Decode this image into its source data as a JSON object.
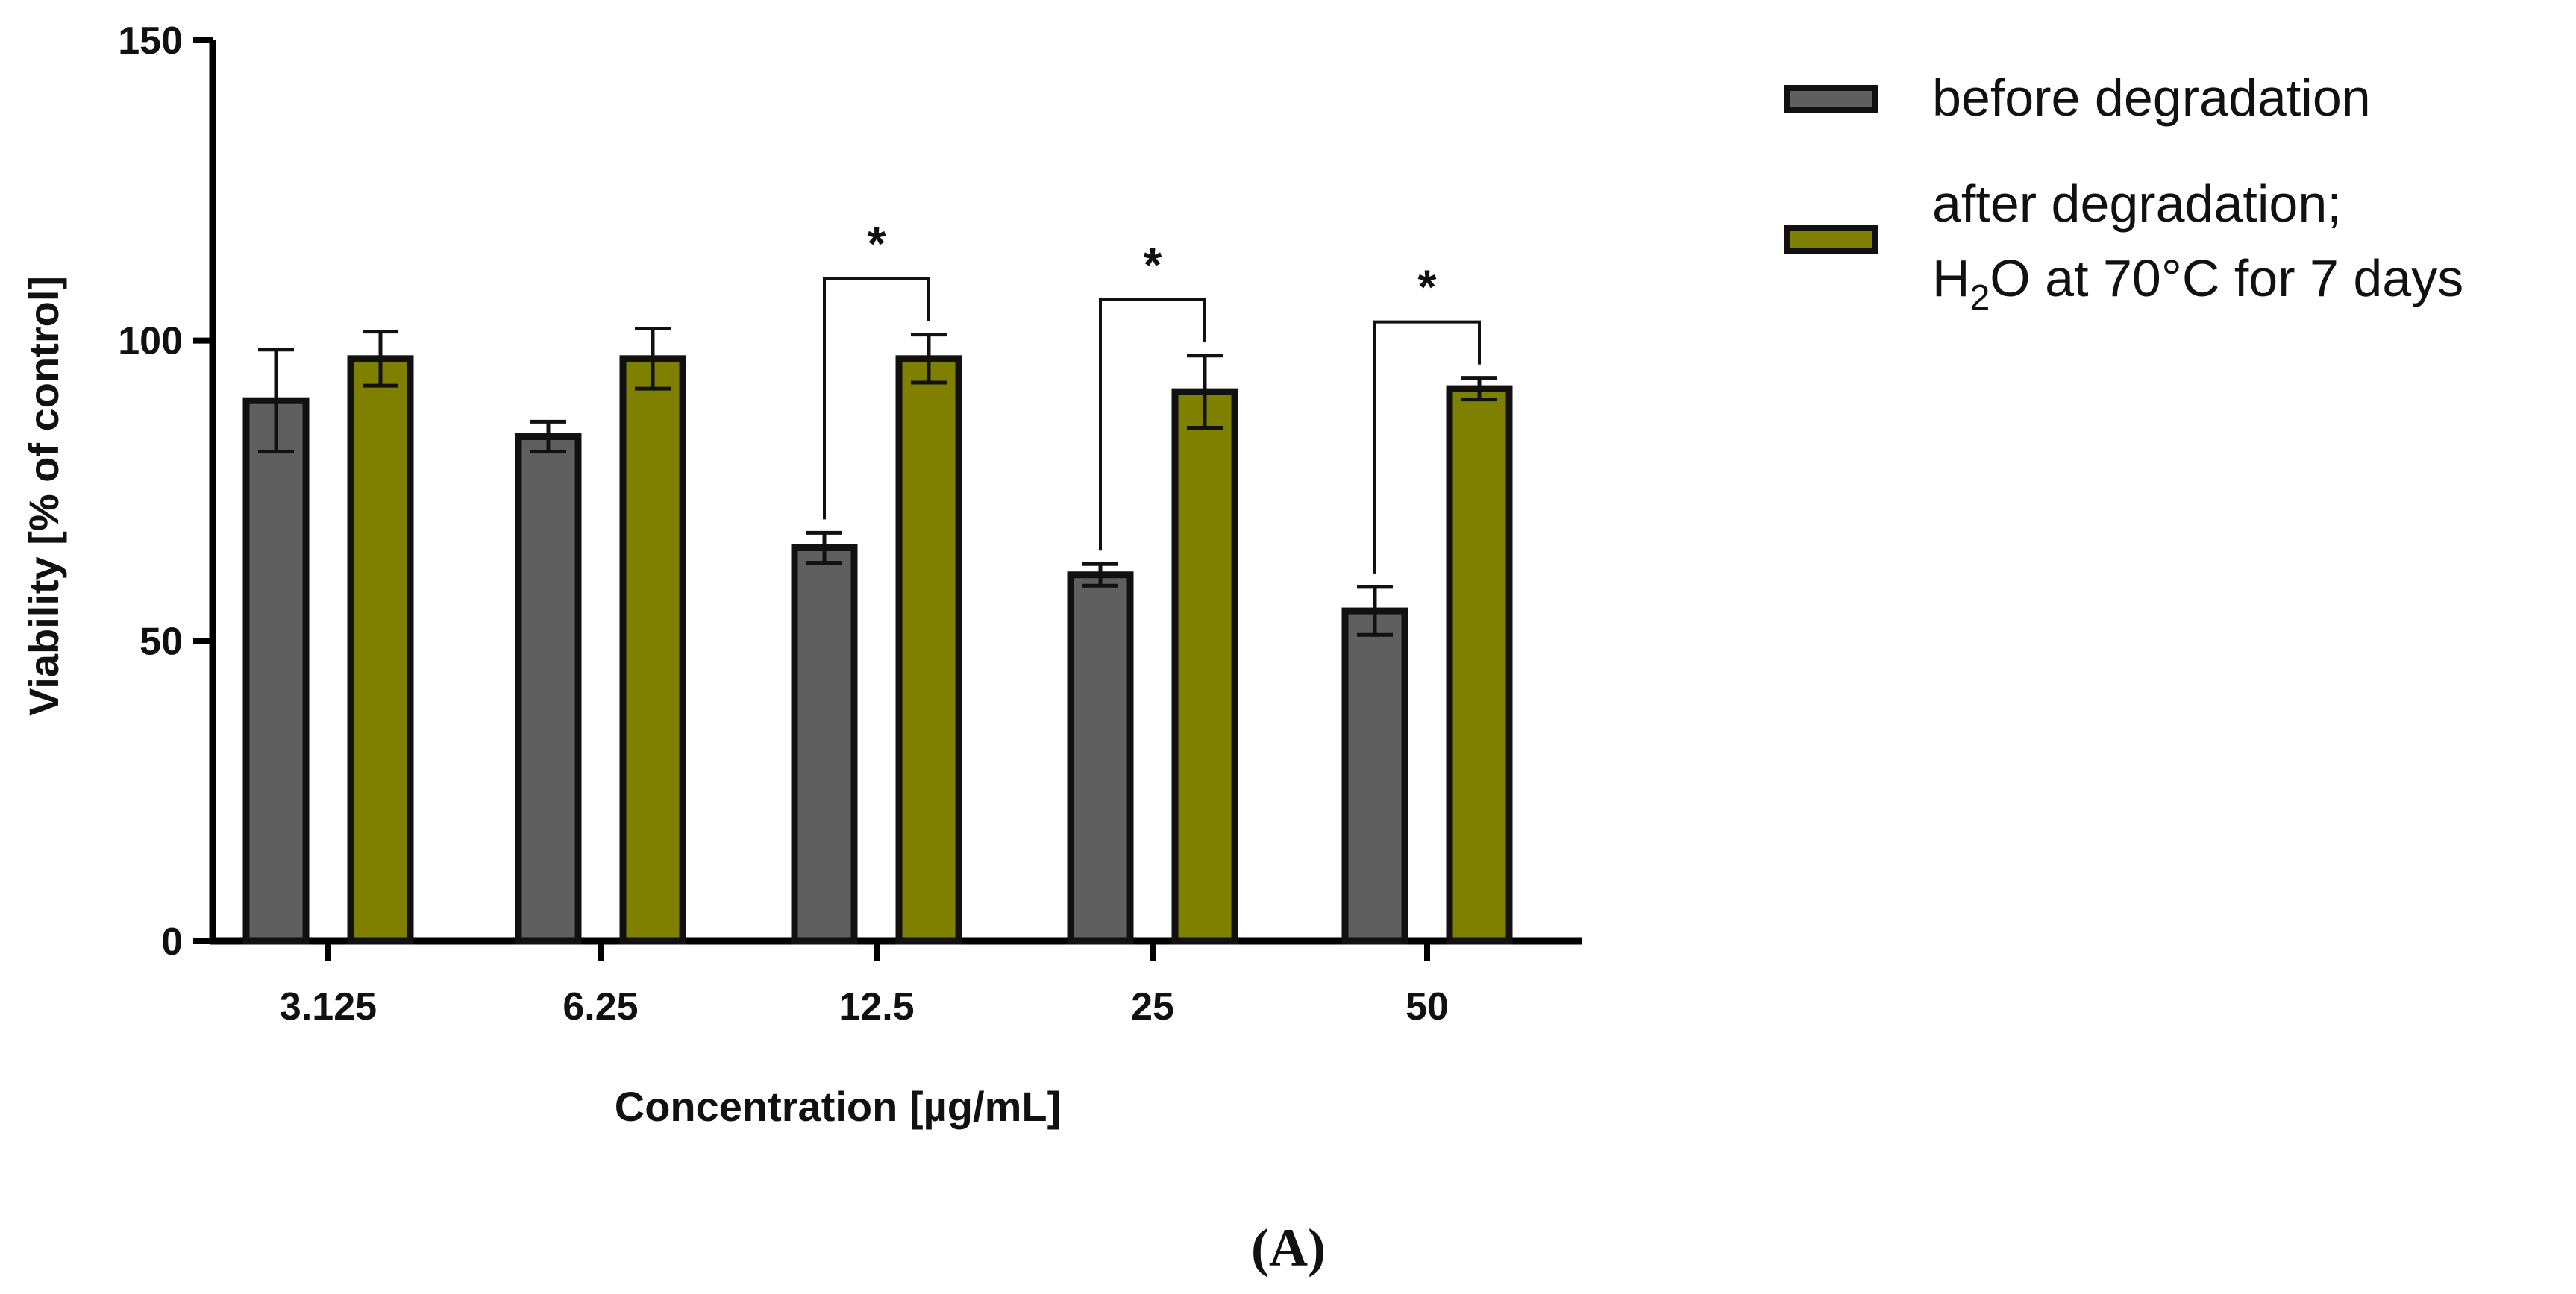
{
  "chart_data": {
    "type": "bar",
    "title": "",
    "xlabel": "Concentration [µg/mL]",
    "ylabel": "Viability [% of control]",
    "ylim": [
      0,
      150
    ],
    "yticks": [
      0,
      50,
      100,
      150
    ],
    "categories": [
      "3.125",
      "6.25",
      "12.5",
      "25",
      "50"
    ],
    "series": [
      {
        "name": "before degradation",
        "color": "#5f5f5f",
        "values": [
          90,
          84,
          65.5,
          61,
          55
        ],
        "errors": [
          8.5,
          2.5,
          2.5,
          1.8,
          4
        ]
      },
      {
        "name": "after degradation; H2O at 70°C for 7 days",
        "color": "#7f7f00",
        "values": [
          97,
          97,
          97,
          91.5,
          92
        ],
        "errors": [
          4.5,
          5,
          4,
          6,
          1.8
        ]
      }
    ],
    "significance": [
      {
        "category": "12.5",
        "label": "*"
      },
      {
        "category": "25",
        "label": "*"
      },
      {
        "category": "50",
        "label": "*"
      }
    ],
    "legend": {
      "position": "right",
      "entries": [
        {
          "lines": [
            "before degradation"
          ]
        },
        {
          "lines": [
            "after degradation;",
            "H",
            "2",
            "O at 70°C for 7 days"
          ]
        }
      ]
    },
    "panel_label": "(A)"
  }
}
